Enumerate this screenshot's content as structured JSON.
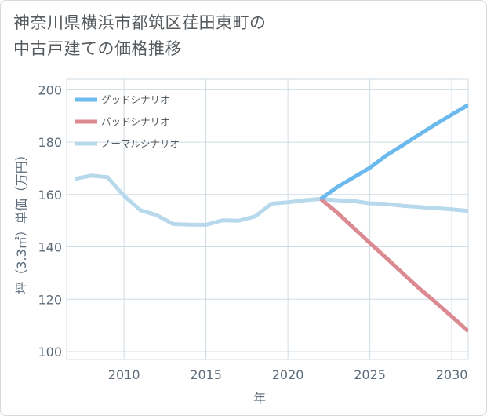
{
  "title_lines": [
    "神奈川県横浜市都筑区荏田東町の",
    "中古戸建ての価格推移"
  ],
  "chart_data": {
    "type": "line",
    "title": "神奈川県横浜市都筑区荏田東町の中古戸建ての価格推移",
    "xlabel": "年",
    "ylabel": "坪（3.3㎡）単価（万円）",
    "xlim": [
      2006.5,
      2031
    ],
    "ylim": [
      97,
      204
    ],
    "x_ticks": [
      2010,
      2015,
      2020,
      2025,
      2030
    ],
    "y_ticks": [
      100,
      120,
      140,
      160,
      180,
      200
    ],
    "grid": true,
    "legend_position": "top-left",
    "series": [
      {
        "name": "グッドシナリオ",
        "color": "#6cb9ee",
        "x": [
          2022,
          2023,
          2024,
          2025,
          2026,
          2027,
          2028,
          2029,
          2030,
          2031
        ],
        "values": [
          158.3,
          162.8,
          166.5,
          170.2,
          174.9,
          178.8,
          182.8,
          186.8,
          190.5,
          194.2
        ]
      },
      {
        "name": "バッドシナリオ",
        "color": "#dc8a92",
        "x": [
          2022,
          2023,
          2024,
          2025,
          2026,
          2027,
          2028,
          2029,
          2030,
          2031
        ],
        "values": [
          158.3,
          153.1,
          147.3,
          141.5,
          135.8,
          130.0,
          124.2,
          118.9,
          113.4,
          107.8
        ]
      },
      {
        "name": "ノーマルシナリオ",
        "color": "#b8d9ec",
        "x": [
          2007,
          2008,
          2009,
          2010,
          2011,
          2012,
          2013,
          2014,
          2015,
          2016,
          2017,
          2018,
          2019,
          2020,
          2021,
          2022,
          2023,
          2024,
          2025,
          2026,
          2027,
          2028,
          2029,
          2030,
          2031
        ],
        "values": [
          166.0,
          167.2,
          166.6,
          159.5,
          154.0,
          152.1,
          148.7,
          148.5,
          148.4,
          150.1,
          150.0,
          151.6,
          156.5,
          157.0,
          157.8,
          158.3,
          157.8,
          157.5,
          156.6,
          156.4,
          155.7,
          155.2,
          154.8,
          154.3,
          153.7
        ]
      }
    ]
  }
}
